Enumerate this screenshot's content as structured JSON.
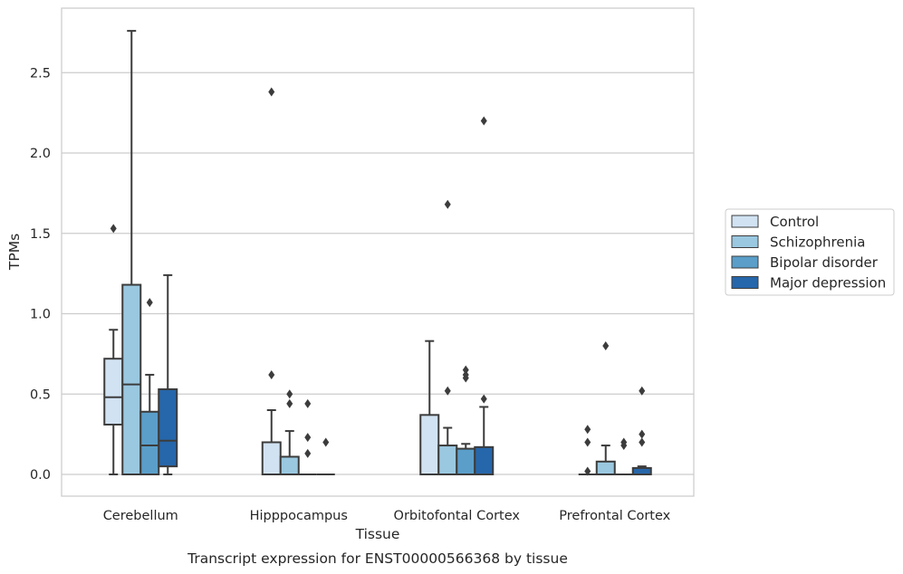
{
  "chart_data": {
    "type": "box",
    "title": "",
    "caption": "Transcript expression for ENST00000566368 by tissue",
    "xlabel": "Tissue",
    "ylabel": "TPMs",
    "categories": [
      "Cerebellum",
      "Hipppocampus",
      "Orbitofontal Cortex",
      "Prefrontal Cortex"
    ],
    "ylim": [
      -0.13,
      2.93
    ],
    "yticks": [
      "0.0",
      "0.5",
      "1.0",
      "1.5",
      "2.0",
      "2.5"
    ],
    "grid": "horizontal",
    "legend_position": "right",
    "series": [
      {
        "name": "Control",
        "color": "#d1e2f2",
        "boxes": [
          {
            "whislo": 0.0,
            "q1": 0.31,
            "med": 0.48,
            "q3": 0.72,
            "whishi": 0.9,
            "fliers": [
              1.53
            ]
          },
          {
            "whislo": 0.0,
            "q1": 0.0,
            "med": 0.0,
            "q3": 0.2,
            "whishi": 0.4,
            "fliers": [
              0.62,
              2.38
            ]
          },
          {
            "whislo": 0.0,
            "q1": 0.0,
            "med": 0.0,
            "q3": 0.37,
            "whishi": 0.83,
            "fliers": []
          },
          {
            "whislo": 0.0,
            "q1": 0.0,
            "med": 0.0,
            "q3": 0.0,
            "whishi": 0.0,
            "fliers": [
              0.02,
              0.2,
              0.28
            ]
          }
        ]
      },
      {
        "name": "Schizophrenia",
        "color": "#9ac8e0",
        "boxes": [
          {
            "whislo": 0.0,
            "q1": 0.0,
            "med": 0.56,
            "q3": 1.18,
            "whishi": 2.76,
            "fliers": []
          },
          {
            "whislo": 0.0,
            "q1": 0.0,
            "med": 0.0,
            "q3": 0.11,
            "whishi": 0.27,
            "fliers": [
              0.44,
              0.5
            ]
          },
          {
            "whislo": 0.0,
            "q1": 0.0,
            "med": 0.0,
            "q3": 0.18,
            "whishi": 0.29,
            "fliers": [
              0.52,
              1.68
            ]
          },
          {
            "whislo": 0.0,
            "q1": 0.0,
            "med": 0.0,
            "q3": 0.08,
            "whishi": 0.18,
            "fliers": [
              0.8
            ]
          }
        ]
      },
      {
        "name": "Bipolar disorder",
        "color": "#5a9ec9",
        "boxes": [
          {
            "whislo": 0.0,
            "q1": 0.0,
            "med": 0.18,
            "q3": 0.39,
            "whishi": 0.62,
            "fliers": [
              1.07
            ]
          },
          {
            "whislo": 0.0,
            "q1": 0.0,
            "med": 0.0,
            "q3": 0.0,
            "whishi": 0.0,
            "fliers": [
              0.13,
              0.23,
              0.44
            ]
          },
          {
            "whislo": 0.0,
            "q1": 0.0,
            "med": 0.0,
            "q3": 0.16,
            "whishi": 0.19,
            "fliers": [
              0.6,
              0.62,
              0.65
            ]
          },
          {
            "whislo": 0.0,
            "q1": 0.0,
            "med": 0.0,
            "q3": 0.0,
            "whishi": 0.0,
            "fliers": [
              0.18,
              0.2
            ]
          }
        ]
      },
      {
        "name": "Major depression",
        "color": "#2666aa",
        "boxes": [
          {
            "whislo": 0.0,
            "q1": 0.05,
            "med": 0.21,
            "q3": 0.53,
            "whishi": 1.24,
            "fliers": []
          },
          {
            "whislo": 0.0,
            "q1": 0.0,
            "med": 0.0,
            "q3": 0.0,
            "whishi": 0.0,
            "fliers": [
              0.2
            ]
          },
          {
            "whislo": 0.0,
            "q1": 0.0,
            "med": 0.0,
            "q3": 0.17,
            "whishi": 0.42,
            "fliers": [
              0.47,
              2.2
            ]
          },
          {
            "whislo": 0.0,
            "q1": 0.0,
            "med": 0.0,
            "q3": 0.04,
            "whishi": 0.05,
            "fliers": [
              0.2,
              0.25,
              0.52
            ]
          }
        ]
      }
    ]
  }
}
